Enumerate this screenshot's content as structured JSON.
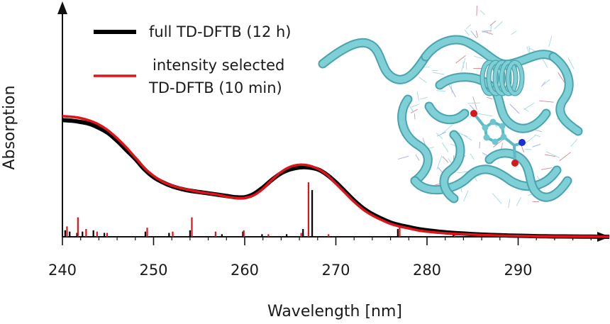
{
  "chart_data": {
    "type": "line",
    "xlabel": "Wavelength [nm]",
    "ylabel": "Absorption",
    "xlim": [
      240,
      300
    ],
    "ylim": [
      0,
      1
    ],
    "x_ticks": [
      240,
      250,
      260,
      270,
      280,
      290
    ],
    "grid": false,
    "legend_placement": "top-left",
    "series": [
      {
        "name": "full TD-DFTB (12 h)",
        "color": "#000000",
        "x": [
          240,
          241,
          242,
          243,
          244,
          245,
          246,
          247,
          248,
          249,
          250,
          251,
          252,
          253,
          254,
          255,
          256,
          257,
          258,
          259,
          260,
          261,
          262,
          263,
          264,
          265,
          266,
          267,
          268,
          269,
          270,
          271,
          272,
          273,
          274,
          275,
          276,
          277,
          278,
          279,
          280,
          282,
          284,
          286,
          288,
          290,
          292,
          294,
          296,
          298,
          300
        ],
        "y": [
          0.9,
          0.895,
          0.885,
          0.87,
          0.84,
          0.8,
          0.74,
          0.67,
          0.6,
          0.52,
          0.46,
          0.42,
          0.39,
          0.37,
          0.355,
          0.345,
          0.335,
          0.325,
          0.315,
          0.305,
          0.305,
          0.33,
          0.38,
          0.44,
          0.49,
          0.52,
          0.535,
          0.535,
          0.52,
          0.48,
          0.42,
          0.35,
          0.28,
          0.22,
          0.175,
          0.14,
          0.11,
          0.09,
          0.075,
          0.06,
          0.05,
          0.035,
          0.025,
          0.017,
          0.012,
          0.008,
          0.005,
          0.003,
          0.002,
          0.001,
          0.0
        ]
      },
      {
        "name": "intensity selected TD-DFTB (10 min)",
        "color": "#e0131b",
        "x": [
          240,
          241,
          242,
          243,
          244,
          245,
          246,
          247,
          248,
          249,
          250,
          251,
          252,
          253,
          254,
          255,
          256,
          257,
          258,
          259,
          260,
          261,
          262,
          263,
          264,
          265,
          266,
          267,
          268,
          269,
          270,
          271,
          272,
          273,
          274,
          275,
          276,
          277,
          278,
          279,
          280,
          282,
          284,
          286,
          288,
          290,
          292,
          294,
          296,
          298,
          300
        ],
        "y": [
          0.93,
          0.925,
          0.915,
          0.895,
          0.865,
          0.82,
          0.76,
          0.69,
          0.61,
          0.53,
          0.47,
          0.425,
          0.395,
          0.375,
          0.36,
          0.345,
          0.335,
          0.325,
          0.31,
          0.3,
          0.3,
          0.32,
          0.37,
          0.44,
          0.5,
          0.54,
          0.555,
          0.55,
          0.525,
          0.48,
          0.41,
          0.34,
          0.27,
          0.21,
          0.165,
          0.13,
          0.1,
          0.08,
          0.065,
          0.05,
          0.04,
          0.028,
          0.02,
          0.014,
          0.01,
          0.007,
          0.004,
          0.003,
          0.002,
          0.001,
          0.0
        ]
      }
    ],
    "sticks": [
      {
        "name": "full TD-DFTB (12 h)",
        "color": "#000000",
        "x": [
          240.3,
          240.8,
          241.6,
          242.2,
          243.4,
          244.6,
          249.1,
          251.7,
          254.0,
          257.5,
          259.8,
          261.9,
          264.6,
          266.4,
          267.4,
          276.8,
          282.9
        ],
        "y": [
          0.05,
          0.04,
          0.03,
          0.04,
          0.05,
          0.03,
          0.04,
          0.03,
          0.05,
          0.02,
          0.04,
          0.02,
          0.02,
          0.06,
          0.36,
          0.06,
          0.02
        ]
      },
      {
        "name": "intensity selected TD-DFTB (10 min)",
        "color": "#e0131b",
        "x": [
          240.5,
          241.7,
          242.6,
          243.8,
          244.9,
          249.3,
          252.1,
          254.2,
          256.8,
          259.9,
          262.6,
          266.2,
          267.0,
          269.2,
          277.0,
          283.0
        ],
        "y": [
          0.08,
          0.15,
          0.06,
          0.04,
          0.03,
          0.07,
          0.04,
          0.15,
          0.04,
          0.05,
          0.02,
          0.03,
          0.42,
          0.02,
          0.08,
          0.02
        ]
      }
    ]
  },
  "legend": {
    "entry1_line1": "full TD-DFTB (12 h)",
    "entry2_line1": "intensity selected",
    "entry2_line2": "TD-DFTB (10 min)"
  },
  "inset": {
    "ribbon_color": "#7fcfd6",
    "ribbon_edge_color": "#4aa3ad",
    "atom_red": "#d81818",
    "atom_blue": "#1c2fd0"
  }
}
